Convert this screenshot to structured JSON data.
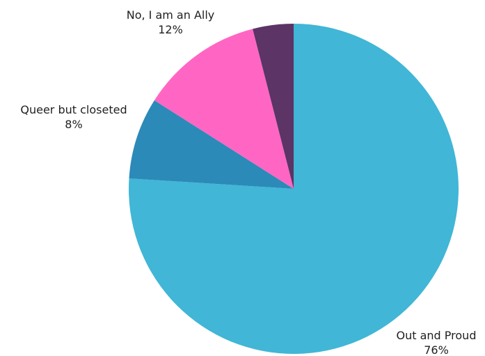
{
  "chart_data": {
    "type": "pie",
    "title": "",
    "slices": [
      {
        "label": "Out and Proud",
        "percent_label": "76%",
        "value": 76,
        "color": "#41b6d6"
      },
      {
        "label": "Queer but closeted",
        "percent_label": "8%",
        "value": 8,
        "color": "#2b8ab8"
      },
      {
        "label": "No, I am an Ally",
        "percent_label": "12%",
        "value": 12,
        "color": "#ff66c4"
      },
      {
        "label": "",
        "percent_label": "",
        "value": 4,
        "color": "#5c3466"
      }
    ],
    "start_angle": "12 o'clock",
    "direction": "clockwise",
    "legend": "none"
  }
}
